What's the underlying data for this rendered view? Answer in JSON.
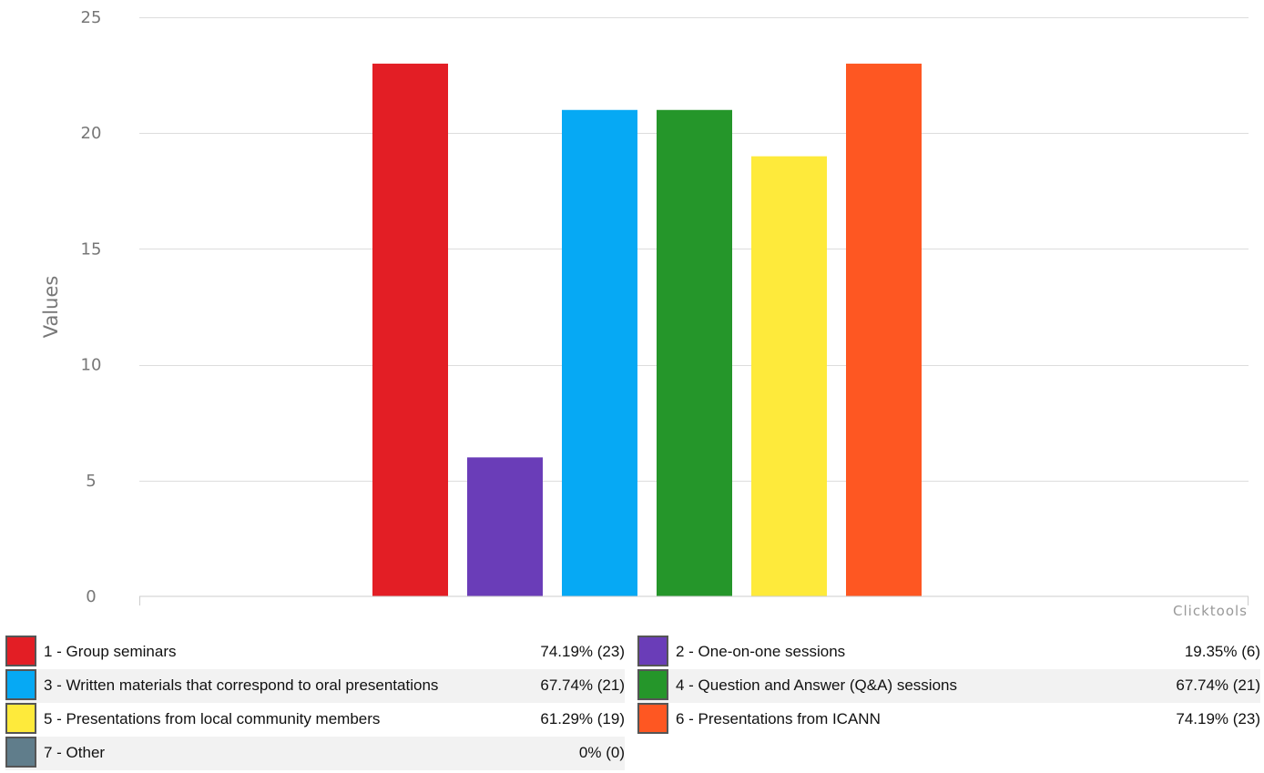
{
  "chart_data": {
    "type": "bar",
    "categories": [
      "1 - Group seminars",
      "2 - One-on-one sessions",
      "3 - Written materials that correspond to oral presentations",
      "4 - Question and Answer (Q&A) sessions",
      "5 - Presentations from local community members",
      "6 - Presentations from ICANN"
    ],
    "values": [
      23,
      6,
      21,
      21,
      19,
      23
    ],
    "colors": [
      "#e31e25",
      "#6a3db8",
      "#06a9f4",
      "#25962a",
      "#feea3b",
      "#fe5722"
    ],
    "ylabel": "Values",
    "xlabel": "",
    "ylim": [
      0,
      25
    ],
    "yticks": [
      0,
      5,
      10,
      15,
      20,
      25
    ],
    "grid": true,
    "credit": "Clicktools"
  },
  "legend": {
    "rows": [
      [
        {
          "label": "1 - Group seminars",
          "value": "74.19% (23)",
          "color": "#e31e25"
        },
        {
          "label": "2 - One-on-one sessions",
          "value": "19.35% (6)",
          "color": "#6a3db8"
        }
      ],
      [
        {
          "label": "3 - Written materials that correspond to oral presentations",
          "value": "67.74% (21)",
          "color": "#06a9f4"
        },
        {
          "label": "4 - Question and Answer (Q&A) sessions",
          "value": "67.74% (21)",
          "color": "#25962a"
        }
      ],
      [
        {
          "label": "5 - Presentations from local community members",
          "value": "61.29% (19)",
          "color": "#feea3b"
        },
        {
          "label": "6 - Presentations from ICANN",
          "value": "74.19% (23)",
          "color": "#fe5722"
        }
      ],
      [
        {
          "label": "7 - Other",
          "value": "0% (0)",
          "color": "#607d8b"
        }
      ]
    ]
  }
}
